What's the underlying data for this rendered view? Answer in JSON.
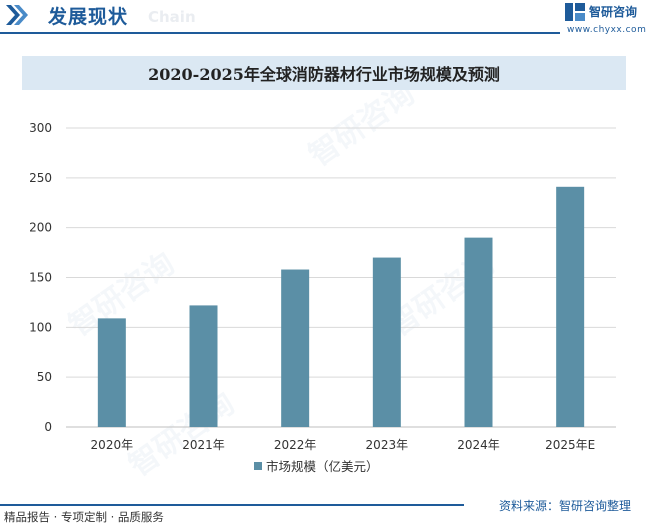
{
  "header": {
    "title": "发展现状",
    "subtitle": "Chain"
  },
  "brand": {
    "name": "智研咨询",
    "url": "www.chyxx.com",
    "watermark": "智研咨询",
    "color": "#1e5b9a"
  },
  "chart_data": {
    "type": "bar",
    "title": "2020-2025年全球消防器材行业市场规模及预测",
    "categories": [
      "2020年",
      "2021年",
      "2022年",
      "2023年",
      "2024年",
      "2025年E"
    ],
    "series": [
      {
        "name": "市场规模（亿美元）",
        "values": [
          109,
          122,
          158,
          170,
          190,
          241
        ],
        "color": "#5b8fa6"
      }
    ],
    "ylim": [
      0,
      300
    ],
    "yticks": [
      0,
      50,
      100,
      150,
      200,
      250,
      300
    ],
    "grid": true,
    "legend_position": "bottom"
  },
  "footer": {
    "left": "精品报告 · 专项定制 · 品质服务",
    "source": "资料来源：智研咨询整理"
  }
}
